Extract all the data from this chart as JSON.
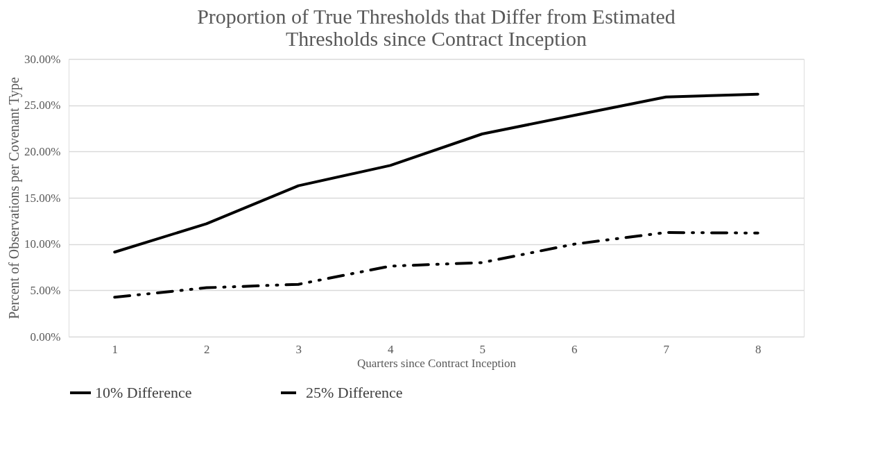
{
  "chart_data": {
    "type": "line",
    "title": "Proportion of True Thresholds that Differ from Estimated\nThresholds since Contract Inception",
    "xlabel": "Quarters since Contract Inception",
    "ylabel": "Percent of Observations per Covenant Type",
    "categories": [
      "1",
      "2",
      "3",
      "4",
      "5",
      "6",
      "7",
      "8"
    ],
    "series": [
      {
        "name": "10% Difference",
        "color": "#000000",
        "line_style": "solid",
        "values": [
          9.13,
          12.2,
          16.3,
          18.5,
          21.9,
          23.9,
          25.9,
          26.2
        ]
      },
      {
        "name": "25% Difference",
        "color": "#000000",
        "line_style": "dashed",
        "values": [
          4.25,
          5.28,
          5.65,
          7.62,
          8.0,
          9.99,
          11.25,
          11.19
        ]
      }
    ],
    "ylim": [
      0,
      30
    ],
    "yticks": [
      {
        "value": 0,
        "label": "0.00%"
      },
      {
        "value": 5,
        "label": "5.00%"
      },
      {
        "value": 10,
        "label": "10.00%"
      },
      {
        "value": 15,
        "label": "15.00%"
      },
      {
        "value": 20,
        "label": "20.00%"
      },
      {
        "value": 25,
        "label": "25.00%"
      },
      {
        "value": 30,
        "label": "30.00%"
      }
    ],
    "grid": "y",
    "legend": "bottom",
    "marker": "none"
  }
}
